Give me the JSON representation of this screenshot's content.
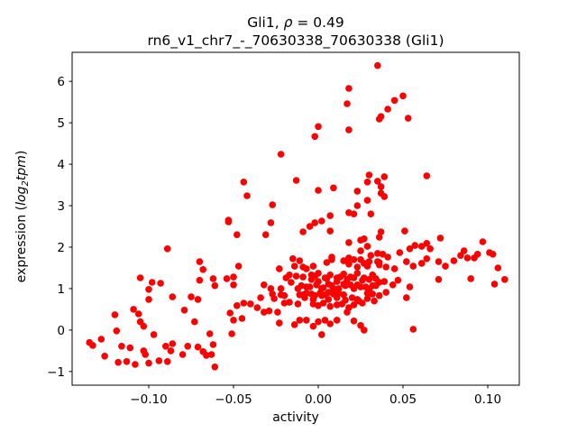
{
  "figure": {
    "title": {
      "prefix": "Gli1, ",
      "rho": "ρ",
      "suffix": " = 0.49"
    },
    "subtitle": "rn6_v1_chr7_-_70630338_70630338 (Gli1)",
    "xlabel": "activity",
    "ylabel": {
      "prefix": "expression (",
      "log": "log",
      "sub": "2",
      "tpm": "tpm",
      "suffix": ")"
    },
    "background_color": "#ffffff",
    "axis_color": "#000000"
  },
  "chart_data": {
    "type": "scatter",
    "title": "Gli1, ρ = 0.49",
    "subtitle": "rn6_v1_chr7_-_70630338_70630338 (Gli1)",
    "xlabel": "activity",
    "ylabel": "expression (log2tpm)",
    "legend": null,
    "grid": false,
    "marker_color": "#ff0000",
    "marker_radius_px": 3.8,
    "xlim": [
      -0.1452,
      0.1186
    ],
    "ylim": [
      -1.33,
      6.7
    ],
    "x_ticks": {
      "values": [
        -0.1,
        -0.05,
        0.0,
        0.05,
        0.1
      ],
      "labels": [
        "−0.10",
        "−0.05",
        "0.00",
        "0.05",
        "0.10"
      ]
    },
    "y_ticks": {
      "values": [
        -1,
        0,
        1,
        2,
        3,
        4,
        5,
        6
      ],
      "labels": [
        "−1",
        "0",
        "1",
        "2",
        "3",
        "4",
        "5",
        "6"
      ]
    },
    "points": [
      [
        -0.053,
        2.65
      ],
      [
        -0.089,
        1.96
      ],
      [
        -0.07,
        1.65
      ],
      [
        -0.068,
        1.46
      ],
      [
        -0.105,
        1.26
      ],
      [
        -0.07,
        1.2
      ],
      [
        -0.062,
        1.24
      ],
      [
        -0.098,
        1.15
      ],
      [
        -0.093,
        1.13
      ],
      [
        -0.061,
        1.07
      ],
      [
        -0.054,
        1.24
      ],
      [
        -0.1,
        0.98
      ],
      [
        -0.086,
        0.8
      ],
      [
        -0.1,
        0.74
      ],
      [
        -0.075,
        0.8
      ],
      [
        -0.071,
        0.74
      ],
      [
        -0.079,
        0.48
      ],
      [
        -0.109,
        0.5
      ],
      [
        -0.106,
        0.39
      ],
      [
        -0.12,
        0.37
      ],
      [
        -0.105,
        0.2
      ],
      [
        -0.103,
        0.09
      ],
      [
        -0.073,
        0.2
      ],
      [
        -0.119,
        -0.02
      ],
      [
        -0.097,
        -0.11
      ],
      [
        -0.128,
        -0.22
      ],
      [
        -0.133,
        -0.37
      ],
      [
        -0.116,
        -0.39
      ],
      [
        -0.111,
        -0.43
      ],
      [
        -0.103,
        -0.5
      ],
      [
        -0.102,
        -0.59
      ],
      [
        -0.09,
        -0.39
      ],
      [
        -0.087,
        -0.5
      ],
      [
        -0.086,
        -0.33
      ],
      [
        -0.08,
        -0.59
      ],
      [
        -0.077,
        -0.39
      ],
      [
        -0.071,
        -0.41
      ],
      [
        -0.068,
        -0.52
      ],
      [
        -0.064,
        -0.09
      ],
      [
        -0.062,
        -0.35
      ],
      [
        -0.126,
        -0.63
      ],
      [
        -0.118,
        -0.78
      ],
      [
        -0.113,
        -0.76
      ],
      [
        -0.108,
        -0.83
      ],
      [
        -0.1,
        -0.8
      ],
      [
        -0.094,
        -0.74
      ],
      [
        -0.089,
        -0.76
      ],
      [
        -0.066,
        -0.61
      ],
      [
        -0.063,
        -0.59
      ],
      [
        -0.061,
        -0.89
      ],
      [
        -0.135,
        -0.3
      ],
      [
        0.035,
        6.38
      ],
      [
        0.018,
        5.83
      ],
      [
        0.017,
        5.46
      ],
      [
        0.05,
        5.65
      ],
      [
        0.045,
        5.54
      ],
      [
        0.041,
        5.33
      ],
      [
        0.037,
        5.15
      ],
      [
        0.053,
        5.11
      ],
      [
        0.036,
        5.09
      ],
      [
        0.0,
        4.91
      ],
      [
        -0.002,
        4.67
      ],
      [
        0.018,
        4.83
      ],
      [
        -0.022,
        4.24
      ],
      [
        -0.013,
        3.61
      ],
      [
        -0.044,
        3.57
      ],
      [
        -0.042,
        3.24
      ],
      [
        -0.027,
        3.02
      ],
      [
        0.0,
        3.37
      ],
      [
        0.009,
        3.43
      ],
      [
        0.03,
        3.74
      ],
      [
        0.029,
        3.57
      ],
      [
        0.035,
        3.59
      ],
      [
        0.023,
        3.35
      ],
      [
        0.029,
        3.13
      ],
      [
        0.023,
        3.0
      ],
      [
        0.039,
        3.7
      ],
      [
        0.064,
        3.72
      ],
      [
        0.037,
        3.46
      ],
      [
        0.037,
        3.3
      ],
      [
        0.039,
        3.22
      ],
      [
        -0.053,
        2.61
      ],
      [
        -0.028,
        2.59
      ],
      [
        0.007,
        2.76
      ],
      [
        0.018,
        2.83
      ],
      [
        0.021,
        2.8
      ],
      [
        0.031,
        2.8
      ],
      [
        0.002,
        2.63
      ],
      [
        -0.002,
        2.59
      ],
      [
        -0.005,
        2.5
      ],
      [
        -0.009,
        2.37
      ],
      [
        0.007,
        2.39
      ],
      [
        -0.048,
        2.3
      ],
      [
        -0.031,
        2.3
      ],
      [
        0.018,
        2.11
      ],
      [
        0.025,
        2.17
      ],
      [
        0.027,
        2.2
      ],
      [
        0.029,
        2.02
      ],
      [
        0.025,
        1.91
      ],
      [
        0.035,
        1.85
      ],
      [
        -0.047,
        1.54
      ],
      [
        -0.015,
        1.72
      ],
      [
        -0.014,
        1.54
      ],
      [
        -0.023,
        1.48
      ],
      [
        -0.009,
        1.52
      ],
      [
        0.008,
        1.76
      ],
      [
        0.018,
        1.74
      ],
      [
        0.025,
        1.7
      ],
      [
        0.031,
        1.8
      ],
      [
        0.035,
        1.65
      ],
      [
        0.018,
        1.59
      ],
      [
        0.023,
        1.52
      ],
      [
        0.029,
        1.54
      ],
      [
        -0.05,
        1.28
      ],
      [
        -0.05,
        1.09
      ],
      [
        -0.032,
        1.09
      ],
      [
        -0.028,
        1.0
      ],
      [
        -0.022,
        1.0
      ],
      [
        -0.019,
        1.26
      ],
      [
        -0.017,
        1.33
      ],
      [
        -0.016,
        1.15
      ],
      [
        -0.013,
        1.3
      ],
      [
        -0.012,
        1.0
      ],
      [
        -0.009,
        0.85
      ],
      [
        -0.007,
        1.04
      ],
      [
        -0.004,
        1.22
      ],
      [
        -0.002,
        1.3
      ],
      [
        0.0,
        1.17
      ],
      [
        0.002,
        1.0
      ],
      [
        0.005,
        1.24
      ],
      [
        0.006,
        1.11
      ],
      [
        0.009,
        1.0
      ],
      [
        0.011,
        1.17
      ],
      [
        0.013,
        1.28
      ],
      [
        0.015,
        1.11
      ],
      [
        0.017,
        1.22
      ],
      [
        0.019,
        1.09
      ],
      [
        0.021,
        1.26
      ],
      [
        0.023,
        1.09
      ],
      [
        0.026,
        1.2
      ],
      [
        0.028,
        1.04
      ],
      [
        0.03,
        1.22
      ],
      [
        0.032,
        1.07
      ],
      [
        0.034,
        1.24
      ],
      [
        -0.034,
        0.78
      ],
      [
        -0.026,
        0.76
      ],
      [
        -0.02,
        0.83
      ],
      [
        -0.027,
        0.87
      ],
      [
        -0.022,
        0.85
      ],
      [
        -0.011,
        0.85
      ],
      [
        -0.007,
        0.89
      ],
      [
        -0.004,
        0.87
      ],
      [
        -0.002,
        0.83
      ],
      [
        0.001,
        0.89
      ],
      [
        0.004,
        0.85
      ],
      [
        0.006,
        0.91
      ],
      [
        0.009,
        0.87
      ],
      [
        0.012,
        0.89
      ],
      [
        0.015,
        0.85
      ],
      [
        0.029,
        0.89
      ],
      [
        0.032,
        0.87
      ],
      [
        -0.048,
        0.59
      ],
      [
        -0.044,
        0.65
      ],
      [
        -0.04,
        0.63
      ],
      [
        -0.036,
        0.54
      ],
      [
        -0.032,
        0.43
      ],
      [
        -0.029,
        0.46
      ],
      [
        -0.024,
        0.43
      ],
      [
        -0.02,
        0.65
      ],
      [
        -0.017,
        0.67
      ],
      [
        -0.012,
        0.63
      ],
      [
        -0.003,
        0.63
      ],
      [
        0.0,
        0.59
      ],
      [
        0.003,
        0.65
      ],
      [
        0.007,
        0.57
      ],
      [
        0.011,
        0.61
      ],
      [
        0.014,
        0.63
      ],
      [
        0.018,
        0.54
      ],
      [
        0.021,
        0.61
      ],
      [
        0.026,
        0.65
      ],
      [
        0.023,
        0.74
      ],
      [
        -0.052,
        0.41
      ],
      [
        -0.05,
        0.24
      ],
      [
        -0.045,
        0.28
      ],
      [
        -0.023,
        0.17
      ],
      [
        -0.014,
        0.13
      ],
      [
        -0.011,
        0.24
      ],
      [
        -0.007,
        0.24
      ],
      [
        -0.003,
        0.09
      ],
      [
        0.0,
        0.2
      ],
      [
        0.004,
        0.24
      ],
      [
        0.007,
        0.15
      ],
      [
        0.011,
        0.24
      ],
      [
        0.017,
        0.43
      ],
      [
        0.021,
        0.22
      ],
      [
        0.025,
        0.11
      ],
      [
        0.027,
        0.0
      ],
      [
        0.002,
        -0.11
      ],
      [
        -0.051,
        -0.09
      ],
      [
        0.037,
        2.37
      ],
      [
        0.051,
        2.39
      ],
      [
        0.036,
        2.24
      ],
      [
        0.038,
        1.83
      ],
      [
        0.041,
        1.76
      ],
      [
        0.048,
        1.87
      ],
      [
        0.054,
        1.96
      ],
      [
        0.057,
        2.04
      ],
      [
        0.061,
        2.02
      ],
      [
        0.064,
        2.09
      ],
      [
        0.066,
        1.96
      ],
      [
        0.072,
        2.22
      ],
      [
        0.052,
        1.65
      ],
      [
        0.056,
        1.54
      ],
      [
        0.061,
        1.61
      ],
      [
        0.064,
        1.72
      ],
      [
        0.036,
        1.63
      ],
      [
        0.04,
        1.52
      ],
      [
        0.045,
        1.48
      ],
      [
        0.071,
        1.65
      ],
      [
        0.075,
        1.54
      ],
      [
        0.08,
        1.67
      ],
      [
        0.084,
        1.8
      ],
      [
        0.086,
        1.91
      ],
      [
        0.088,
        1.74
      ],
      [
        0.092,
        1.74
      ],
      [
        0.094,
        1.83
      ],
      [
        0.097,
        2.13
      ],
      [
        0.101,
        1.87
      ],
      [
        0.103,
        1.83
      ],
      [
        0.106,
        1.5
      ],
      [
        0.11,
        1.22
      ],
      [
        0.09,
        1.24
      ],
      [
        0.104,
        1.11
      ],
      [
        0.036,
        1.15
      ],
      [
        0.039,
        1.17
      ],
      [
        0.044,
        1.09
      ],
      [
        0.047,
        1.2
      ],
      [
        0.054,
        1.04
      ],
      [
        0.071,
        1.22
      ],
      [
        0.052,
        0.78
      ],
      [
        0.036,
        0.83
      ],
      [
        0.056,
        0.02
      ],
      [
        0.04,
        0.91
      ],
      [
        -0.011,
        1.67
      ],
      [
        -0.007,
        1.48
      ],
      [
        -0.003,
        1.54
      ],
      [
        0.005,
        1.63
      ],
      [
        0.008,
        1.7
      ],
      [
        0.015,
        1.67
      ],
      [
        0.021,
        1.7
      ],
      [
        0.027,
        1.61
      ],
      [
        0.03,
        1.65
      ],
      [
        0.036,
        1.57
      ],
      [
        -0.009,
        1.28
      ],
      [
        -0.004,
        1.33
      ],
      [
        0.0,
        1.37
      ],
      [
        0.004,
        1.26
      ],
      [
        0.007,
        1.33
      ],
      [
        0.011,
        1.26
      ],
      [
        0.015,
        1.35
      ],
      [
        0.019,
        1.28
      ],
      [
        0.023,
        1.37
      ],
      [
        0.027,
        1.26
      ],
      [
        0.032,
        1.33
      ],
      [
        -0.01,
        1.07
      ],
      [
        -0.005,
        1.04
      ],
      [
        -0.001,
        1.09
      ],
      [
        0.003,
        1.02
      ],
      [
        0.008,
        1.07
      ],
      [
        0.012,
        1.0
      ],
      [
        0.016,
        1.07
      ],
      [
        0.021,
        1.0
      ],
      [
        0.025,
        1.04
      ],
      [
        0.03,
        0.98
      ],
      [
        0.034,
        1.07
      ],
      [
        -0.008,
        0.78
      ],
      [
        -0.003,
        0.74
      ],
      [
        0.002,
        0.83
      ],
      [
        0.006,
        0.74
      ],
      [
        0.011,
        0.78
      ],
      [
        0.016,
        0.72
      ],
      [
        0.02,
        0.78
      ],
      [
        0.024,
        0.7
      ],
      [
        0.029,
        0.76
      ],
      [
        0.033,
        0.7
      ]
    ]
  }
}
